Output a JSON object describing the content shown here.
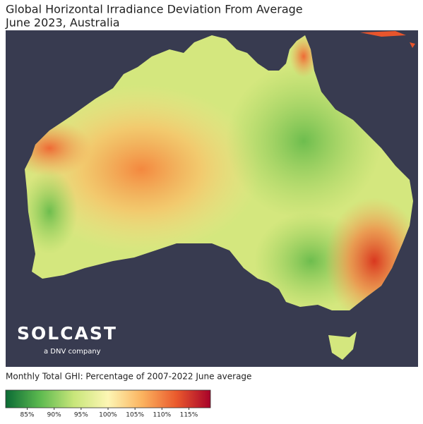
{
  "header": {
    "title": "Global Horizontal Irradiance Deviation From Average",
    "subtitle": "June 2023, Australia"
  },
  "logo": {
    "name": "SOLCAST",
    "tagline": "a DNV company"
  },
  "colorbar": {
    "label": "Monthly Total GHI: Percentage of 2007-2022 June average",
    "range": [
      81,
      119
    ],
    "colors": [
      "#0b6b35",
      "#5cb94f",
      "#c8e67a",
      "#fdf6b4",
      "#fbb35f",
      "#ea5a2d",
      "#a8022a"
    ],
    "ticks": [
      {
        "value": 85,
        "label": "85%"
      },
      {
        "value": 90,
        "label": "90%"
      },
      {
        "value": 95,
        "label": "95%"
      },
      {
        "value": 100,
        "label": "100%"
      },
      {
        "value": 105,
        "label": "105%"
      },
      {
        "value": 110,
        "label": "110%"
      },
      {
        "value": 115,
        "label": "115%"
      }
    ]
  }
}
